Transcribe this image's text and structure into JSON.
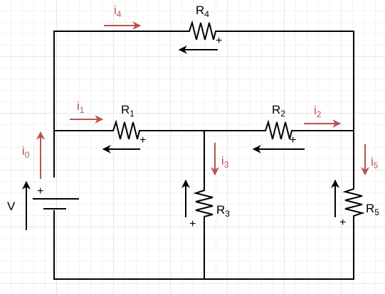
{
  "colors": {
    "wire": "#000000",
    "current": "#b85450",
    "voltage": "#000000",
    "grid": "#e6e6e6"
  },
  "source": {
    "name": "V",
    "plus": "+"
  },
  "resistors": [
    {
      "main": "R",
      "sub": "1",
      "plus": "+"
    },
    {
      "main": "R",
      "sub": "2",
      "plus": "+"
    },
    {
      "main": "R",
      "sub": "3",
      "plus": "+"
    },
    {
      "main": "R",
      "sub": "4",
      "plus": "+"
    },
    {
      "main": "R",
      "sub": "5",
      "plus": "+"
    }
  ],
  "currents": [
    {
      "main": "i",
      "sub": "0"
    },
    {
      "main": "i",
      "sub": "1"
    },
    {
      "main": "i",
      "sub": "2"
    },
    {
      "main": "i",
      "sub": "3"
    },
    {
      "main": "i",
      "sub": "4"
    },
    {
      "main": "i",
      "sub": "5"
    }
  ]
}
